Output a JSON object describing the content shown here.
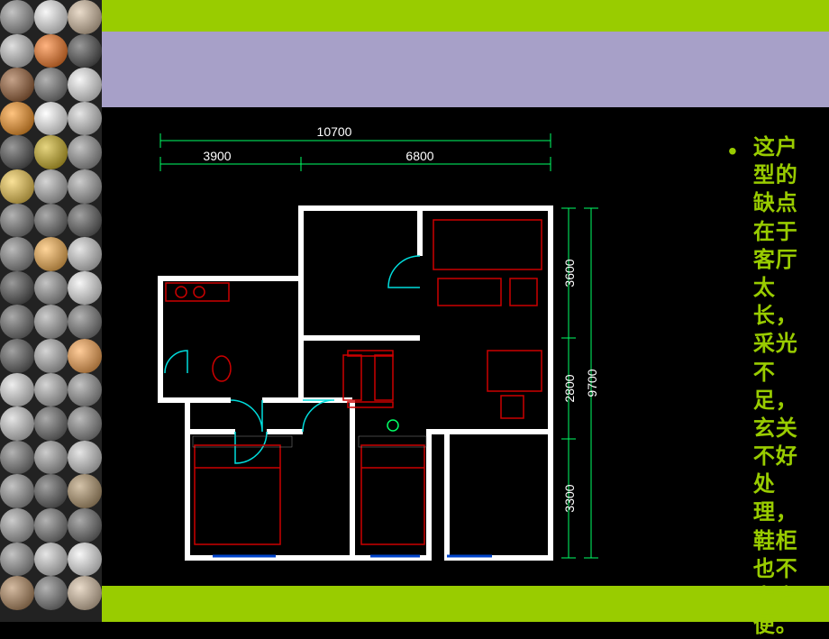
{
  "colors": {
    "green_band": "#99cc00",
    "purple_band": "#a7a0c8",
    "black": "#000000",
    "text_green": "#99cc00",
    "dim_line": "#00ff66",
    "wall": "#ffffff",
    "furniture": "#cc0000",
    "door": "#00dddd",
    "window": "#0044cc",
    "dim_text": "#ffffff"
  },
  "dimensions": {
    "total_width": "10700",
    "left_width": "3900",
    "right_width": "6800",
    "total_height": "9700",
    "top_height": "3600",
    "mid_height": "2800",
    "bot_height": "3300"
  },
  "bullet_text": "这户型的缺点在于客厅太长，采光不足，玄关不好处理，鞋柜也不太方便。",
  "thumbnails": [
    "#888",
    "#f0f0f0",
    "#d4b896",
    "#c0c0c0",
    "#ff6600",
    "#333",
    "#8b4513",
    "#666",
    "#eee",
    "#ff8800",
    "#fff",
    "#ccc",
    "#333",
    "#ccaa00",
    "#888",
    "#f4c430",
    "#aaa",
    "#999",
    "#666",
    "#555",
    "#444",
    "#777",
    "#ffaa33",
    "#ccc",
    "#333",
    "#888",
    "#eee",
    "#555",
    "#999",
    "#666",
    "#444",
    "#aaa",
    "#ff9933",
    "#ddd",
    "#aaa",
    "#888",
    "#ccc",
    "#555",
    "#777",
    "#666",
    "#999",
    "#ccc",
    "#888",
    "#444",
    "#aa8855",
    "#999",
    "#666",
    "#555",
    "#888",
    "#ccc",
    "#f0f0f0",
    "#aa7744",
    "#666",
    "#d4b896"
  ]
}
